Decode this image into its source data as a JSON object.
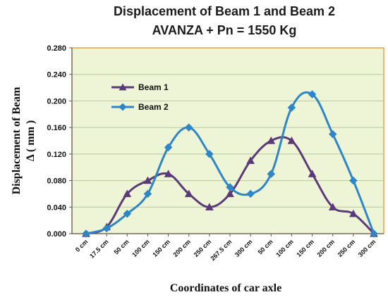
{
  "chart_data": {
    "type": "line",
    "title_lines": [
      "Displacement of Beam 1 and Beam 2",
      "AVANZA +  Pn = 1550 Kg"
    ],
    "xlabel": "Coordinates of car axle",
    "ylabel_lines": [
      "Displacement of Beam",
      "Δ  ( mm )"
    ],
    "categories": [
      "0 cm",
      "17.5 cm",
      "50 cm",
      "100 cm",
      "150 cm",
      "200 cm",
      "250 cm",
      "267.5 cm",
      "300 cm",
      "50 cm",
      "100 cm",
      "150 cm",
      "200 cm",
      "250 cm",
      "300 cm"
    ],
    "yticks": [
      "0.000",
      "0.040",
      "0.080",
      "0.120",
      "0.160",
      "0.200",
      "0.240",
      "0.280"
    ],
    "ylim": [
      0,
      0.28
    ],
    "grid": true,
    "legend_position": "top-left",
    "series": [
      {
        "name": "Beam 1",
        "marker": "triangle",
        "color": "#5b3a7a",
        "values": [
          0,
          0.01,
          0.06,
          0.08,
          0.09,
          0.06,
          0.04,
          0.06,
          0.11,
          0.14,
          0.14,
          0.09,
          0.04,
          0.03,
          0
        ]
      },
      {
        "name": "Beam 2",
        "marker": "diamond",
        "color": "#2e86c8",
        "values": [
          0,
          0.008,
          0.03,
          0.06,
          0.13,
          0.16,
          0.12,
          0.07,
          0.06,
          0.09,
          0.19,
          0.21,
          0.15,
          0.08,
          0
        ]
      }
    ],
    "colors": {
      "plot_bg": "#eef5d6",
      "grid": "#b9c79a",
      "border": "#e7a055"
    }
  }
}
